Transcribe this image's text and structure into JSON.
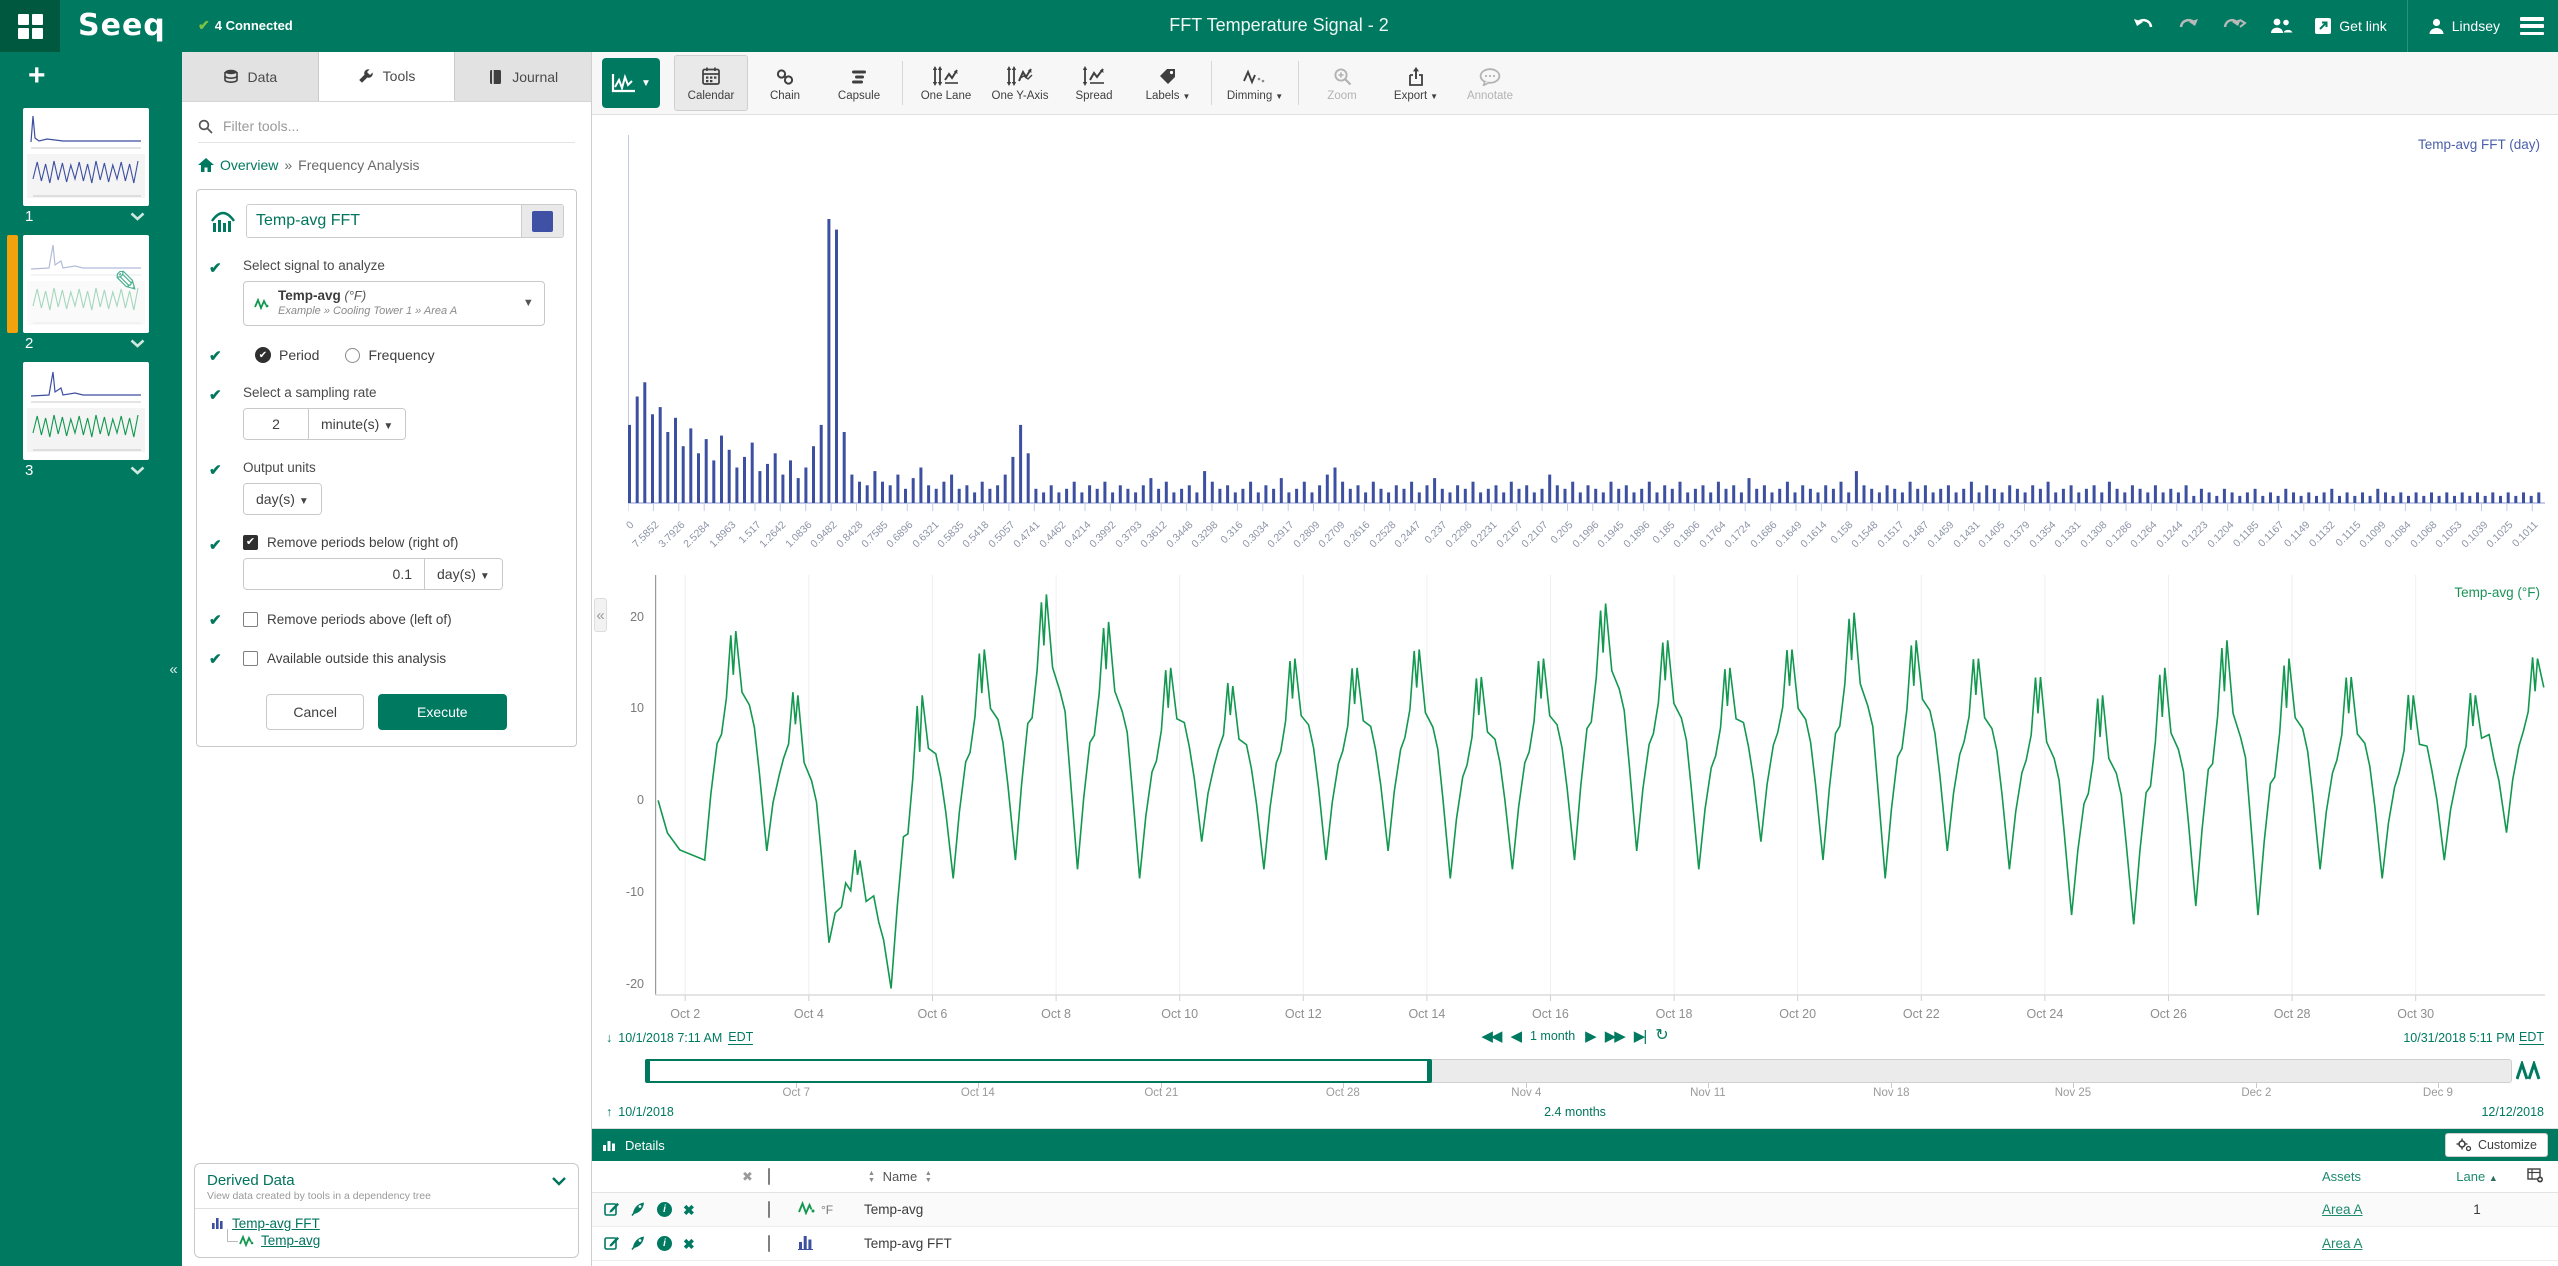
{
  "topbar": {
    "logo": "Seeq",
    "connected": "4 Connected",
    "title": "FFT Temperature Signal - 2",
    "get_link": "Get link",
    "user": "Lindsey"
  },
  "sidebar": {
    "worksheets": [
      {
        "num": "1",
        "active": false
      },
      {
        "num": "2",
        "active": true
      },
      {
        "num": "3",
        "active": false
      }
    ]
  },
  "tools_panel": {
    "tabs": [
      {
        "label": "Data",
        "icon": "database",
        "active": false
      },
      {
        "label": "Tools",
        "icon": "wrench",
        "active": true
      },
      {
        "label": "Journal",
        "icon": "journal",
        "active": false
      }
    ],
    "filter_placeholder": "Filter tools...",
    "breadcrumb": {
      "home": "Overview",
      "sep": "»",
      "current": "Frequency Analysis"
    },
    "form": {
      "name": "Temp-avg FFT",
      "swatch_color": "#3f51a5",
      "signal_label": "Select signal to analyze",
      "signal_name": "Temp-avg",
      "signal_unit": "(°F)",
      "signal_path": "Example » Cooling Tower 1 » Area A",
      "radio_period": "Period",
      "radio_frequency": "Frequency",
      "sampling_label": "Select a sampling rate",
      "sampling_value": "2",
      "sampling_unit": "minute(s)",
      "output_label": "Output units",
      "output_unit": "day(s)",
      "below_label": "Remove periods below (right of)",
      "below_value": "0.1",
      "below_unit": "day(s)",
      "above_label": "Remove periods above (left of)",
      "available_label": "Available outside this analysis",
      "cancel": "Cancel",
      "execute": "Execute"
    },
    "derived": {
      "title": "Derived Data",
      "subtitle": "View data created by tools in a dependency tree",
      "parent_link": "Temp-avg FFT",
      "child_link": "Temp-avg"
    }
  },
  "toolbar": {
    "groups": [
      [
        {
          "label": "Calendar",
          "icon": "calendar",
          "active": true
        },
        {
          "label": "Chain",
          "icon": "chain"
        },
        {
          "label": "Capsule",
          "icon": "capsule"
        }
      ],
      [
        {
          "label": "One Lane",
          "icon": "one-lane"
        },
        {
          "label": "One Y-Axis",
          "icon": "one-y-axis"
        },
        {
          "label": "Spread",
          "icon": "spread"
        },
        {
          "label": "Labels",
          "icon": "labels",
          "caret": true
        }
      ],
      [
        {
          "label": "Dimming",
          "icon": "dimming",
          "caret": true
        }
      ],
      [
        {
          "label": "Zoom",
          "icon": "zoom",
          "disabled": true
        },
        {
          "label": "Export",
          "icon": "export",
          "caret": true
        },
        {
          "label": "Annotate",
          "icon": "annotate",
          "disabled": true
        }
      ]
    ]
  },
  "chart_data": [
    {
      "type": "bar",
      "title": "Temp-avg FFT (day)",
      "title_color": "#4a5fa8",
      "bar_color": "#3c4fa0",
      "ylabel": "",
      "grid": false,
      "x_tick_labels": [
        "0",
        "7.5852",
        "3.7926",
        "2.5284",
        "1.8963",
        "1.517",
        "1.2642",
        "1.0836",
        "0.9482",
        "0.8428",
        "0.7585",
        "0.6896",
        "0.6321",
        "0.5835",
        "0.5418",
        "0.5057",
        "0.4741",
        "0.4462",
        "0.4214",
        "0.3992",
        "0.3793",
        "0.3612",
        "0.3448",
        "0.3298",
        "0.316",
        "0.3034",
        "0.2917",
        "0.2809",
        "0.2709",
        "0.2616",
        "0.2528",
        "0.2447",
        "0.237",
        "0.2298",
        "0.2231",
        "0.2167",
        "0.2107",
        "0.205",
        "0.1996",
        "0.1945",
        "0.1896",
        "0.185",
        "0.1806",
        "0.1764",
        "0.1724",
        "0.1686",
        "0.1649",
        "0.1614",
        "0.158",
        "0.1548",
        "0.1517",
        "0.1487",
        "0.1459",
        "0.1431",
        "0.1405",
        "0.1379",
        "0.1354",
        "0.1331",
        "0.1308",
        "0.1286",
        "0.1264",
        "0.1244",
        "0.1223",
        "0.1204",
        "0.1185",
        "0.1167",
        "0.1149",
        "0.1132",
        "0.1115",
        "0.1099",
        "0.1084",
        "0.1068",
        "0.1053",
        "0.1039",
        "0.1025",
        "0.1011"
      ],
      "bars_pct": [
        22,
        30,
        34,
        25,
        27,
        20,
        24,
        16,
        21,
        14,
        18,
        12,
        19,
        15,
        10,
        13,
        17,
        9,
        11,
        14,
        8,
        12,
        7,
        10,
        16,
        22,
        80,
        77,
        20,
        8,
        6,
        5,
        9,
        6,
        5,
        8,
        4,
        7,
        10,
        5,
        4,
        6,
        8,
        4,
        5,
        3,
        6,
        4,
        5,
        8,
        13,
        22,
        14,
        4,
        3,
        5,
        3,
        4,
        6,
        3,
        5,
        4,
        6,
        3,
        5,
        4,
        3,
        5,
        7,
        4,
        6,
        3,
        4,
        5,
        3,
        9,
        6,
        4,
        5,
        3,
        4,
        6,
        3,
        5,
        4,
        7,
        3,
        4,
        6,
        3,
        5,
        8,
        10,
        6,
        4,
        5,
        3,
        6,
        4,
        3,
        5,
        4,
        6,
        3,
        5,
        7,
        4,
        3,
        5,
        4,
        6,
        3,
        4,
        5,
        3,
        6,
        4,
        5,
        3,
        4,
        8,
        5,
        4,
        6,
        3,
        5,
        4,
        3,
        6,
        4,
        5,
        3,
        4,
        6,
        3,
        5,
        4,
        6,
        3,
        4,
        5,
        3,
        6,
        4,
        5,
        3,
        7,
        4,
        5,
        3,
        4,
        6,
        3,
        5,
        4,
        3,
        5,
        4,
        6,
        3,
        9,
        5,
        4,
        3,
        5,
        4,
        3,
        6,
        4,
        5,
        3,
        4,
        5,
        3,
        4,
        6,
        3,
        5,
        4,
        3,
        5,
        4,
        3,
        5,
        4,
        6,
        3,
        4,
        5,
        3,
        4,
        5,
        3,
        6,
        4,
        3,
        5,
        4,
        3,
        5,
        3,
        4,
        3,
        5,
        2,
        4,
        3,
        2,
        4,
        3,
        2,
        3,
        4,
        2,
        3,
        2,
        4,
        3,
        2,
        3,
        2,
        3,
        4,
        2,
        3,
        2,
        3,
        2,
        4,
        3,
        2,
        3,
        2,
        3,
        2,
        3,
        2,
        3,
        2,
        3,
        2,
        3,
        2,
        3,
        2,
        3,
        2,
        3,
        2,
        3
      ]
    },
    {
      "type": "line",
      "title": "Temp-avg (°F)",
      "title_color": "#1b9158",
      "line_color": "#12984f",
      "ylim": [
        -23,
        24
      ],
      "y_ticks": [
        20,
        10,
        0,
        -10,
        -20
      ],
      "x_tick_labels": [
        "Oct 2",
        "Oct 4",
        "Oct 6",
        "Oct 8",
        "Oct 10",
        "Oct 12",
        "Oct 14",
        "Oct 16",
        "Oct 18",
        "Oct 20",
        "Oct 22",
        "Oct 24",
        "Oct 26",
        "Oct 28",
        "Oct 30"
      ],
      "x_range_days": 30.42,
      "days_lo_hi": [
        [
          -7,
          19
        ],
        [
          -6,
          12
        ],
        [
          -16,
          -6
        ],
        [
          -21,
          12
        ],
        [
          -9,
          17
        ],
        [
          -7,
          23
        ],
        [
          -8,
          20
        ],
        [
          -9,
          15
        ],
        [
          -5,
          13
        ],
        [
          -8,
          16
        ],
        [
          -7,
          15
        ],
        [
          -6,
          17
        ],
        [
          -9,
          14
        ],
        [
          -8,
          16
        ],
        [
          -7,
          22
        ],
        [
          -6,
          18
        ],
        [
          -8,
          15
        ],
        [
          -5,
          17
        ],
        [
          -7,
          21
        ],
        [
          -9,
          18
        ],
        [
          -6,
          16
        ],
        [
          -8,
          14
        ],
        [
          -13,
          12
        ],
        [
          -14,
          15
        ],
        [
          -12,
          18
        ],
        [
          -13,
          16
        ],
        [
          -8,
          14
        ],
        [
          -9,
          12
        ],
        [
          -7,
          12
        ],
        [
          -4,
          16
        ]
      ]
    }
  ],
  "time_bar": {
    "start": "10/1/2018 7:11 AM",
    "start_tz": "EDT",
    "range": "1 month",
    "end": "10/31/2018 5:11 PM",
    "end_tz": "EDT"
  },
  "scrubber": {
    "selected_pct": 42.2,
    "ticks": [
      {
        "label": "Oct 7",
        "pct": 8.0
      },
      {
        "label": "Oct 14",
        "pct": 17.6
      },
      {
        "label": "Oct 21",
        "pct": 27.3
      },
      {
        "label": "Oct 28",
        "pct": 36.9
      },
      {
        "label": "Nov 4",
        "pct": 46.6
      },
      {
        "label": "Nov 11",
        "pct": 56.2
      },
      {
        "label": "Nov 18",
        "pct": 65.9
      },
      {
        "label": "Nov 25",
        "pct": 75.5
      },
      {
        "label": "Dec 2",
        "pct": 85.2
      },
      {
        "label": "Dec 9",
        "pct": 94.8
      }
    ],
    "start": "10/1/2018",
    "duration": "2.4 months",
    "end": "12/12/2018"
  },
  "details": {
    "title": "Details",
    "customize": "Customize",
    "col_name": "Name",
    "col_assets": "Assets",
    "col_lane": "Lane",
    "rows": [
      {
        "type_icon": "signal",
        "unit": "°F",
        "name": "Temp-avg",
        "asset": "Area A",
        "lane": "1"
      },
      {
        "type_icon": "histogram",
        "unit": "",
        "name": "Temp-avg FFT",
        "asset": "Area A",
        "lane": ""
      }
    ]
  }
}
